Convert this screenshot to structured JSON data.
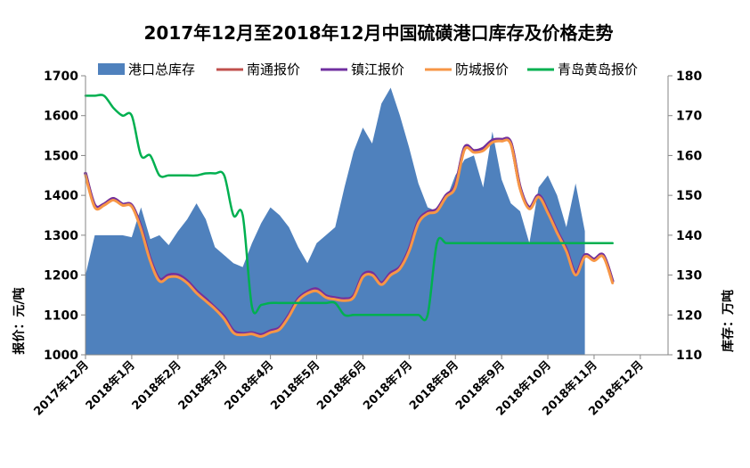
{
  "chart_data": {
    "type": "line",
    "title": "2017年12月至2018年12月中国硫磺港口库存及价格走势",
    "ylabel_left": "报价：元/吨",
    "ylabel_right": "库存：万吨",
    "ylim_left": [
      1000,
      1700
    ],
    "yticks_left": [
      "1000",
      "1100",
      "1200",
      "1300",
      "1400",
      "1500",
      "1600",
      "1700"
    ],
    "ylim_right": [
      110,
      180
    ],
    "yticks_right": [
      "110",
      "120",
      "130",
      "140",
      "150",
      "160",
      "170",
      "180"
    ],
    "x_range": [
      0,
      63
    ],
    "x_ticks": [
      {
        "x": 0,
        "label": "2017年12月"
      },
      {
        "x": 5,
        "label": "2018年1月"
      },
      {
        "x": 10,
        "label": "2018年2月"
      },
      {
        "x": 15,
        "label": "2018年3月"
      },
      {
        "x": 20,
        "label": "2018年4月"
      },
      {
        "x": 25,
        "label": "2018年5月"
      },
      {
        "x": 30,
        "label": "2018年6月"
      },
      {
        "x": 35,
        "label": "2018年7月"
      },
      {
        "x": 40,
        "label": "2018年8月"
      },
      {
        "x": 45,
        "label": "2018年9月"
      },
      {
        "x": 50,
        "label": "2018年10月"
      },
      {
        "x": 55,
        "label": "2018年11月"
      },
      {
        "x": 60,
        "label": "2018年12月"
      }
    ],
    "legend_position": "top",
    "grid": false,
    "series": [
      {
        "name": "港口总库存",
        "type": "area",
        "axis": "right",
        "color": "#4f81bd",
        "points": [
          [
            0,
            130
          ],
          [
            1,
            140
          ],
          [
            2,
            140
          ],
          [
            3,
            140
          ],
          [
            4,
            140
          ],
          [
            5,
            139.5
          ],
          [
            6,
            147
          ],
          [
            7,
            139
          ],
          [
            8,
            140
          ],
          [
            9,
            137.5
          ],
          [
            10,
            141
          ],
          [
            11,
            144
          ],
          [
            12,
            148
          ],
          [
            13,
            144
          ],
          [
            14,
            137
          ],
          [
            15,
            135
          ],
          [
            16,
            133
          ],
          [
            17,
            132
          ],
          [
            18,
            138
          ],
          [
            19,
            143
          ],
          [
            20,
            147
          ],
          [
            21,
            145
          ],
          [
            22,
            142
          ],
          [
            23,
            137
          ],
          [
            24,
            133
          ],
          [
            25,
            138
          ],
          [
            26,
            140
          ],
          [
            27,
            142
          ],
          [
            28,
            152
          ],
          [
            29,
            161
          ],
          [
            30,
            167
          ],
          [
            31,
            163
          ],
          [
            32,
            173
          ],
          [
            33,
            177
          ],
          [
            34,
            170
          ],
          [
            35,
            162
          ],
          [
            36,
            153
          ],
          [
            37,
            147
          ],
          [
            38,
            146
          ],
          [
            39,
            149
          ],
          [
            40,
            155
          ],
          [
            41,
            159
          ],
          [
            42,
            160
          ],
          [
            43,
            152
          ],
          [
            44,
            166
          ],
          [
            45,
            154
          ],
          [
            46,
            148
          ],
          [
            47,
            146
          ],
          [
            48,
            138
          ],
          [
            49,
            152
          ],
          [
            50,
            155
          ],
          [
            51,
            150
          ],
          [
            52,
            142
          ],
          [
            53,
            153
          ],
          [
            54,
            141
          ]
        ]
      },
      {
        "name": "南通报价",
        "type": "line",
        "axis": "left",
        "color": "#c0504d",
        "points": [
          [
            0,
            1455
          ],
          [
            1,
            1375
          ],
          [
            2,
            1378
          ],
          [
            3,
            1392
          ],
          [
            4,
            1378
          ],
          [
            5,
            1375
          ],
          [
            6,
            1320
          ],
          [
            7,
            1240
          ],
          [
            8,
            1190
          ],
          [
            9,
            1200
          ],
          [
            10,
            1200
          ],
          [
            11,
            1185
          ],
          [
            12,
            1160
          ],
          [
            13,
            1140
          ],
          [
            14,
            1118
          ],
          [
            15,
            1095
          ],
          [
            16,
            1060
          ],
          [
            17,
            1053
          ],
          [
            18,
            1055
          ],
          [
            19,
            1050
          ],
          [
            20,
            1060
          ],
          [
            21,
            1068
          ],
          [
            22,
            1100
          ],
          [
            23,
            1140
          ],
          [
            24,
            1158
          ],
          [
            25,
            1165
          ],
          [
            26,
            1148
          ],
          [
            27,
            1143
          ],
          [
            28,
            1140
          ],
          [
            29,
            1148
          ],
          [
            30,
            1200
          ],
          [
            31,
            1205
          ],
          [
            32,
            1180
          ],
          [
            33,
            1205
          ],
          [
            34,
            1220
          ],
          [
            35,
            1265
          ],
          [
            36,
            1335
          ],
          [
            37,
            1358
          ],
          [
            38,
            1365
          ],
          [
            39,
            1400
          ],
          [
            40,
            1425
          ],
          [
            41,
            1520
          ],
          [
            42,
            1512
          ],
          [
            43,
            1518
          ],
          [
            44,
            1538
          ],
          [
            45,
            1540
          ],
          [
            46,
            1532
          ],
          [
            47,
            1420
          ],
          [
            48,
            1370
          ],
          [
            49,
            1400
          ],
          [
            50,
            1360
          ],
          [
            51,
            1310
          ],
          [
            52,
            1265
          ],
          [
            53,
            1205
          ],
          [
            54,
            1250
          ],
          [
            55,
            1240
          ],
          [
            56,
            1250
          ],
          [
            57,
            1185
          ]
        ]
      },
      {
        "name": "镇江报价",
        "type": "line",
        "axis": "left",
        "color": "#7030a0",
        "points": [
          [
            0,
            1455
          ],
          [
            1,
            1375
          ],
          [
            2,
            1378
          ],
          [
            3,
            1392
          ],
          [
            4,
            1378
          ],
          [
            5,
            1375
          ],
          [
            6,
            1320
          ],
          [
            7,
            1240
          ],
          [
            8,
            1190
          ],
          [
            9,
            1200
          ],
          [
            10,
            1200
          ],
          [
            11,
            1185
          ],
          [
            12,
            1160
          ],
          [
            13,
            1140
          ],
          [
            14,
            1118
          ],
          [
            15,
            1095
          ],
          [
            16,
            1060
          ],
          [
            17,
            1053
          ],
          [
            18,
            1055
          ],
          [
            19,
            1050
          ],
          [
            20,
            1060
          ],
          [
            21,
            1068
          ],
          [
            22,
            1100
          ],
          [
            23,
            1140
          ],
          [
            24,
            1158
          ],
          [
            25,
            1165
          ],
          [
            26,
            1148
          ],
          [
            27,
            1143
          ],
          [
            28,
            1140
          ],
          [
            29,
            1148
          ],
          [
            30,
            1200
          ],
          [
            31,
            1205
          ],
          [
            32,
            1180
          ],
          [
            33,
            1205
          ],
          [
            34,
            1220
          ],
          [
            35,
            1265
          ],
          [
            36,
            1335
          ],
          [
            37,
            1358
          ],
          [
            38,
            1365
          ],
          [
            39,
            1400
          ],
          [
            40,
            1425
          ],
          [
            41,
            1520
          ],
          [
            42,
            1512
          ],
          [
            43,
            1518
          ],
          [
            44,
            1538
          ],
          [
            45,
            1540
          ],
          [
            46,
            1532
          ],
          [
            47,
            1420
          ],
          [
            48,
            1370
          ],
          [
            49,
            1400
          ],
          [
            50,
            1360
          ],
          [
            51,
            1310
          ],
          [
            52,
            1265
          ],
          [
            53,
            1205
          ],
          [
            54,
            1250
          ],
          [
            55,
            1240
          ],
          [
            56,
            1250
          ],
          [
            57,
            1185
          ]
        ]
      },
      {
        "name": "防城报价",
        "type": "line",
        "axis": "left",
        "color": "#f79646",
        "points": [
          [
            0,
            1450
          ],
          [
            1,
            1370
          ],
          [
            2,
            1375
          ],
          [
            3,
            1388
          ],
          [
            4,
            1375
          ],
          [
            5,
            1372
          ],
          [
            6,
            1315
          ],
          [
            7,
            1235
          ],
          [
            8,
            1185
          ],
          [
            9,
            1195
          ],
          [
            10,
            1195
          ],
          [
            11,
            1180
          ],
          [
            12,
            1155
          ],
          [
            13,
            1135
          ],
          [
            14,
            1115
          ],
          [
            15,
            1090
          ],
          [
            16,
            1055
          ],
          [
            17,
            1050
          ],
          [
            18,
            1052
          ],
          [
            19,
            1046
          ],
          [
            20,
            1056
          ],
          [
            21,
            1064
          ],
          [
            22,
            1096
          ],
          [
            23,
            1136
          ],
          [
            24,
            1154
          ],
          [
            25,
            1160
          ],
          [
            26,
            1144
          ],
          [
            27,
            1139
          ],
          [
            28,
            1136
          ],
          [
            29,
            1144
          ],
          [
            30,
            1195
          ],
          [
            31,
            1200
          ],
          [
            32,
            1176
          ],
          [
            33,
            1200
          ],
          [
            34,
            1216
          ],
          [
            35,
            1260
          ],
          [
            36,
            1330
          ],
          [
            37,
            1354
          ],
          [
            38,
            1360
          ],
          [
            39,
            1396
          ],
          [
            40,
            1420
          ],
          [
            41,
            1515
          ],
          [
            42,
            1508
          ],
          [
            43,
            1512
          ],
          [
            44,
            1533
          ],
          [
            45,
            1536
          ],
          [
            46,
            1528
          ],
          [
            47,
            1416
          ],
          [
            48,
            1366
          ],
          [
            49,
            1396
          ],
          [
            50,
            1356
          ],
          [
            51,
            1306
          ],
          [
            52,
            1260
          ],
          [
            53,
            1200
          ],
          [
            54,
            1246
          ],
          [
            55,
            1236
          ],
          [
            56,
            1246
          ],
          [
            57,
            1180
          ]
        ]
      },
      {
        "name": "青岛黄岛报价",
        "type": "line",
        "axis": "left",
        "color": "#00b050",
        "points": [
          [
            0,
            1650
          ],
          [
            1,
            1650
          ],
          [
            2,
            1650
          ],
          [
            3,
            1620
          ],
          [
            4,
            1600
          ],
          [
            5,
            1600
          ],
          [
            6,
            1500
          ],
          [
            7,
            1500
          ],
          [
            8,
            1450
          ],
          [
            9,
            1450
          ],
          [
            10,
            1450
          ],
          [
            11,
            1450
          ],
          [
            12,
            1450
          ],
          [
            13,
            1455
          ],
          [
            14,
            1455
          ],
          [
            15,
            1450
          ],
          [
            16,
            1350
          ],
          [
            17,
            1350
          ],
          [
            18,
            1120
          ],
          [
            19,
            1125
          ],
          [
            20,
            1130
          ],
          [
            21,
            1130
          ],
          [
            22,
            1130
          ],
          [
            23,
            1130
          ],
          [
            24,
            1130
          ],
          [
            25,
            1130
          ],
          [
            26,
            1130
          ],
          [
            27,
            1130
          ],
          [
            28,
            1100
          ],
          [
            29,
            1100
          ],
          [
            30,
            1100
          ],
          [
            31,
            1100
          ],
          [
            32,
            1100
          ],
          [
            33,
            1100
          ],
          [
            34,
            1100
          ],
          [
            35,
            1100
          ],
          [
            36,
            1100
          ],
          [
            37,
            1100
          ],
          [
            38,
            1280
          ],
          [
            39,
            1280
          ],
          [
            40,
            1280
          ],
          [
            41,
            1280
          ],
          [
            42,
            1280
          ],
          [
            43,
            1280
          ],
          [
            44,
            1280
          ],
          [
            45,
            1280
          ],
          [
            46,
            1280
          ],
          [
            47,
            1280
          ],
          [
            48,
            1280
          ],
          [
            49,
            1280
          ],
          [
            50,
            1280
          ],
          [
            51,
            1280
          ],
          [
            52,
            1280
          ],
          [
            53,
            1280
          ],
          [
            54,
            1280
          ],
          [
            55,
            1280
          ],
          [
            56,
            1280
          ],
          [
            57,
            1280
          ]
        ]
      }
    ]
  }
}
